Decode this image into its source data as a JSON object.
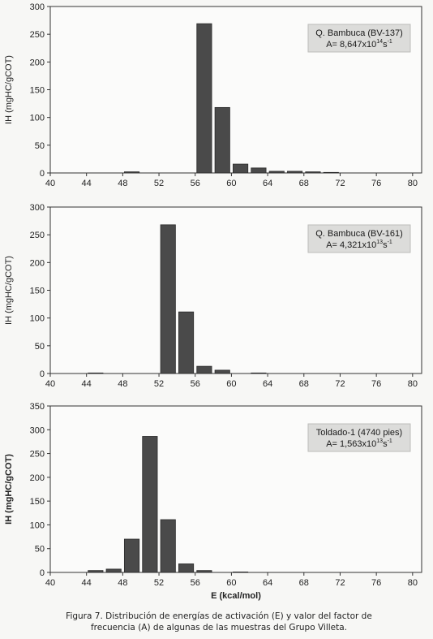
{
  "chart_data": [
    {
      "type": "bar",
      "ylabel": "IH (mgHC/gCOT)",
      "xlabel": "",
      "ylim": [
        0,
        300
      ],
      "yticks": [
        0,
        50,
        100,
        150,
        200,
        250,
        300
      ],
      "xlim": [
        40,
        81
      ],
      "xticks": [
        40,
        44,
        48,
        52,
        56,
        60,
        64,
        68,
        72,
        76,
        80
      ],
      "x": [
        43,
        45,
        47,
        49,
        51,
        53,
        55,
        57,
        59,
        61,
        63,
        65,
        67,
        69,
        71,
        73,
        75,
        77,
        79
      ],
      "values": [
        0,
        0,
        0,
        2,
        0,
        0,
        0,
        269,
        118,
        16,
        9,
        3,
        3,
        2,
        1,
        0,
        0,
        0,
        0
      ],
      "annotation": {
        "sample": "Q. Bambuca (BV-137)",
        "a_prefix": "A= 8,647x10",
        "a_exp": "14",
        "a_unit": "s",
        "a_unit_exp": "-1"
      },
      "color": "#4a4a4a",
      "grid": false
    },
    {
      "type": "bar",
      "ylabel": "IH (mgHC/gCOT)",
      "xlabel": "",
      "ylim": [
        0,
        300
      ],
      "yticks": [
        0,
        50,
        100,
        150,
        200,
        250,
        300
      ],
      "xlim": [
        40,
        81
      ],
      "xticks": [
        40,
        44,
        48,
        52,
        56,
        60,
        64,
        68,
        72,
        76,
        80
      ],
      "x": [
        43,
        45,
        47,
        49,
        51,
        53,
        55,
        57,
        59,
        61,
        63,
        65,
        67,
        69,
        71,
        73,
        75,
        77,
        79
      ],
      "values": [
        0,
        1,
        0,
        0,
        0,
        268,
        111,
        13,
        6,
        0,
        1,
        0,
        0,
        0,
        0,
        0,
        0,
        0,
        0
      ],
      "annotation": {
        "sample": "Q. Bambuca (BV-161)",
        "a_prefix": "A= 4,321x10",
        "a_exp": "13",
        "a_unit": "s",
        "a_unit_exp": "-1"
      },
      "color": "#4a4a4a",
      "grid": false
    },
    {
      "type": "bar",
      "ylabel": "IH (mgHC/gCOT)",
      "xlabel": "E (kcal/mol)",
      "ylim": [
        0,
        350
      ],
      "yticks": [
        0,
        50,
        100,
        150,
        200,
        250,
        300,
        350
      ],
      "xlim": [
        40,
        81
      ],
      "xticks": [
        40,
        44,
        48,
        52,
        56,
        60,
        64,
        68,
        72,
        76,
        80
      ],
      "x": [
        43,
        45,
        47,
        49,
        51,
        53,
        55,
        57,
        59,
        61,
        63,
        65,
        67,
        69,
        71,
        73,
        75,
        77,
        79
      ],
      "values": [
        0,
        4,
        7,
        70,
        286,
        111,
        18,
        4,
        0,
        1,
        0,
        0,
        0,
        0,
        0,
        0,
        0,
        0,
        0
      ],
      "annotation": {
        "sample": "Toldado-1 (4740 pies)",
        "a_prefix": "A= 1,563x10",
        "a_exp": "13",
        "a_unit": "s",
        "a_unit_exp": "-1"
      },
      "color": "#4a4a4a",
      "grid": false
    }
  ],
  "caption": {
    "line1": "Figura 7.  Distribución de energías de activación (E) y valor del factor de",
    "line2": "frecuencia (A) de algunas de las muestras del Grupo Villeta."
  }
}
